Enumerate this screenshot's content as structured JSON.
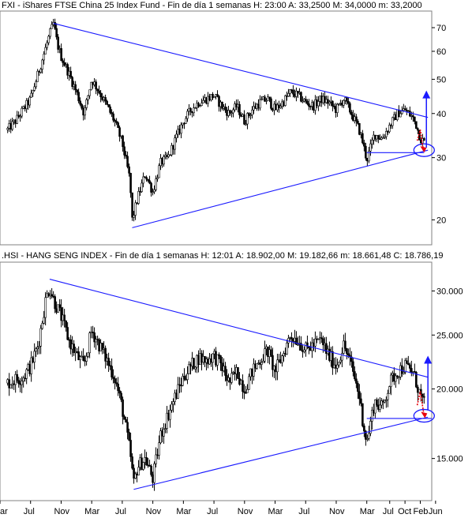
{
  "chart_data": [
    {
      "type": "candlestick",
      "title": "FXI - iShares FTSE China 25 Index Fund - Fin de día 1 semanas  H: 23:00  A: 33,2500  M: 34,0000  m: 33,2000",
      "scale": "log",
      "ylim": [
        17,
        78
      ],
      "y_ticks": [
        {
          "value": 70,
          "label": "70"
        },
        {
          "value": 60,
          "label": "60"
        },
        {
          "value": 50,
          "label": "50"
        },
        {
          "value": 40,
          "label": "40"
        },
        {
          "value": 30,
          "label": "30"
        },
        {
          "value": 20,
          "label": "20"
        }
      ],
      "series": [
        {
          "values": [
            {
              "t": 0,
              "v": 36
            },
            {
              "t": 1,
              "v": 38
            },
            {
              "t": 3,
              "v": 44
            },
            {
              "t": 4,
              "v": 52
            },
            {
              "t": 5.5,
              "v": 67
            },
            {
              "t": 6,
              "v": 72
            },
            {
              "t": 6.5,
              "v": 63
            },
            {
              "t": 7,
              "v": 58
            },
            {
              "t": 8,
              "v": 52
            },
            {
              "t": 9,
              "v": 46
            },
            {
              "t": 10,
              "v": 40
            },
            {
              "t": 11,
              "v": 50
            },
            {
              "t": 12,
              "v": 46
            },
            {
              "t": 13,
              "v": 42
            },
            {
              "t": 14,
              "v": 38
            },
            {
              "t": 15,
              "v": 33
            },
            {
              "t": 16,
              "v": 26
            },
            {
              "t": 16.3,
              "v": 20
            },
            {
              "t": 17,
              "v": 23
            },
            {
              "t": 18,
              "v": 27
            },
            {
              "t": 19,
              "v": 24
            },
            {
              "t": 20,
              "v": 29
            },
            {
              "t": 21,
              "v": 30
            },
            {
              "t": 22,
              "v": 34
            },
            {
              "t": 23,
              "v": 38
            },
            {
              "t": 24,
              "v": 41
            },
            {
              "t": 25,
              "v": 43
            },
            {
              "t": 26,
              "v": 44
            },
            {
              "t": 27,
              "v": 45
            },
            {
              "t": 28,
              "v": 42
            },
            {
              "t": 29,
              "v": 40
            },
            {
              "t": 30,
              "v": 42
            },
            {
              "t": 31,
              "v": 38
            },
            {
              "t": 32,
              "v": 41
            },
            {
              "t": 33,
              "v": 43
            },
            {
              "t": 34,
              "v": 44
            },
            {
              "t": 35,
              "v": 41
            },
            {
              "t": 36,
              "v": 43
            },
            {
              "t": 37,
              "v": 46
            },
            {
              "t": 38,
              "v": 45
            },
            {
              "t": 39,
              "v": 43
            },
            {
              "t": 40,
              "v": 42
            },
            {
              "t": 41,
              "v": 44
            },
            {
              "t": 42,
              "v": 43
            },
            {
              "t": 43,
              "v": 41
            },
            {
              "t": 44,
              "v": 44
            },
            {
              "t": 45,
              "v": 40
            },
            {
              "t": 46,
              "v": 36
            },
            {
              "t": 46.5,
              "v": 33
            },
            {
              "t": 47,
              "v": 29.5
            },
            {
              "t": 48,
              "v": 35
            },
            {
              "t": 49,
              "v": 34
            },
            {
              "t": 50,
              "v": 37
            },
            {
              "t": 51,
              "v": 40
            },
            {
              "t": 52,
              "v": 41
            },
            {
              "t": 53,
              "v": 39
            },
            {
              "t": 53.5,
              "v": 37
            },
            {
              "t": 54,
              "v": 34
            },
            {
              "t": 54.5,
              "v": 33.2
            }
          ]
        }
      ]
    },
    {
      "type": "candlestick",
      "title": ".HSI - HANG SENG INDEX - Fin de día 1 semanas  H: 12:01  A: 18.902,00  M: 19.182,66  m: 18.661,48  C: 18.786,19",
      "scale": "log",
      "ylim": [
        12600,
        33800
      ],
      "y_ticks": [
        {
          "value": 30000,
          "label": "30.000"
        },
        {
          "value": 25000,
          "label": "25.000"
        },
        {
          "value": 20000,
          "label": "20.000"
        },
        {
          "value": 15000,
          "label": "15.000"
        }
      ],
      "series": [
        {
          "values": [
            {
              "t": 0,
              "v": 20500
            },
            {
              "t": 1,
              "v": 20800
            },
            {
              "t": 2,
              "v": 21000
            },
            {
              "t": 3,
              "v": 22000
            },
            {
              "t": 4,
              "v": 24000
            },
            {
              "t": 5,
              "v": 29000
            },
            {
              "t": 5.5,
              "v": 30500
            },
            {
              "t": 6,
              "v": 29000
            },
            {
              "t": 7,
              "v": 27000
            },
            {
              "t": 8,
              "v": 24500
            },
            {
              "t": 9,
              "v": 23000
            },
            {
              "t": 10,
              "v": 22000
            },
            {
              "t": 11,
              "v": 25500
            },
            {
              "t": 12,
              "v": 24000
            },
            {
              "t": 13,
              "v": 22500
            },
            {
              "t": 14,
              "v": 21000
            },
            {
              "t": 15,
              "v": 18500
            },
            {
              "t": 16,
              "v": 15500
            },
            {
              "t": 16.5,
              "v": 13500
            },
            {
              "t": 17,
              "v": 14500
            },
            {
              "t": 18,
              "v": 15000
            },
            {
              "t": 19,
              "v": 13800
            },
            {
              "t": 20,
              "v": 16500
            },
            {
              "t": 21,
              "v": 18000
            },
            {
              "t": 22,
              "v": 19500
            },
            {
              "t": 23,
              "v": 21000
            },
            {
              "t": 24,
              "v": 22000
            },
            {
              "t": 25,
              "v": 22800
            },
            {
              "t": 26,
              "v": 22500
            },
            {
              "t": 27,
              "v": 23000
            },
            {
              "t": 28,
              "v": 22000
            },
            {
              "t": 29,
              "v": 20500
            },
            {
              "t": 30,
              "v": 21500
            },
            {
              "t": 31,
              "v": 20000
            },
            {
              "t": 32,
              "v": 21500
            },
            {
              "t": 33,
              "v": 22500
            },
            {
              "t": 34,
              "v": 23500
            },
            {
              "t": 35,
              "v": 21500
            },
            {
              "t": 36,
              "v": 23000
            },
            {
              "t": 37,
              "v": 25000
            },
            {
              "t": 38,
              "v": 24500
            },
            {
              "t": 39,
              "v": 23500
            },
            {
              "t": 40,
              "v": 24000
            },
            {
              "t": 41,
              "v": 24500
            },
            {
              "t": 42,
              "v": 23000
            },
            {
              "t": 43,
              "v": 22000
            },
            {
              "t": 44,
              "v": 24000
            },
            {
              "t": 45,
              "v": 22000
            },
            {
              "t": 46,
              "v": 19500
            },
            {
              "t": 46.5,
              "v": 17500
            },
            {
              "t": 47,
              "v": 16000
            },
            {
              "t": 48,
              "v": 19000
            },
            {
              "t": 49,
              "v": 18500
            },
            {
              "t": 50,
              "v": 20500
            },
            {
              "t": 51,
              "v": 21500
            },
            {
              "t": 52,
              "v": 22000
            },
            {
              "t": 53,
              "v": 21500
            },
            {
              "t": 53.5,
              "v": 20500
            },
            {
              "t": 54,
              "v": 19500
            },
            {
              "t": 54.5,
              "v": 18786
            }
          ]
        }
      ]
    }
  ],
  "x_axis": {
    "t_range": [
      -1,
      55.5
    ],
    "ticks": [
      {
        "t": -1,
        "label": "ar"
      },
      {
        "t": 3,
        "label": "Jul"
      },
      {
        "t": 7,
        "label": "Nov"
      },
      {
        "t": 11,
        "label": "Mar"
      },
      {
        "t": 15,
        "label": "Jul"
      },
      {
        "t": 19,
        "label": "Nov"
      },
      {
        "t": 23,
        "label": "Mar"
      },
      {
        "t": 27,
        "label": "Jul"
      },
      {
        "t": 31,
        "label": "Nov"
      },
      {
        "t": 35,
        "label": "Mar"
      },
      {
        "t": 39,
        "label": "Jul"
      },
      {
        "t": 43,
        "label": "Nov"
      },
      {
        "t": 47,
        "label": "Mar"
      },
      {
        "t": 50,
        "label": "Jul"
      },
      {
        "t": 52,
        "label": "Oct"
      },
      {
        "t": 54,
        "label": "Feb"
      },
      {
        "t": 56,
        "label": "Jun"
      }
    ]
  },
  "annotations": {
    "trendline_color": "#1a1aff",
    "arrow_color": "#e8000b",
    "fxi": {
      "upper_line": [
        {
          "t": 6,
          "v": 72
        },
        {
          "t": 55,
          "v": 39
        }
      ],
      "lower_line": [
        {
          "t": 16.3,
          "v": 19
        },
        {
          "t": 55,
          "v": 31.5
        }
      ],
      "support": [
        {
          "t": 47,
          "v": 31
        },
        {
          "t": 54.5,
          "v": 31
        }
      ],
      "blue_arrow": [
        {
          "t": 54.8,
          "v": 32
        },
        {
          "t": 54.8,
          "v": 46
        }
      ],
      "ellipse_center": {
        "t": 54.5,
        "v": 31.5
      },
      "red_arrow": [
        {
          "t": 53.6,
          "v": 33.5
        },
        {
          "t": 54,
          "v": 36
        },
        {
          "t": 54.4,
          "v": 31.5
        }
      ]
    },
    "hsi": {
      "upper_line": [
        {
          "t": 5.5,
          "v": 31500
        },
        {
          "t": 55,
          "v": 21000
        }
      ],
      "lower_line": [
        {
          "t": 16.5,
          "v": 13200
        },
        {
          "t": 55,
          "v": 17800
        }
      ],
      "support": [
        {
          "t": 47,
          "v": 17700
        },
        {
          "t": 55.5,
          "v": 17700
        }
      ],
      "blue_arrow": [
        {
          "t": 55,
          "v": 18300
        },
        {
          "t": 55,
          "v": 22800
        }
      ],
      "ellipse_center": {
        "t": 54.5,
        "v": 17900
      },
      "red_arrow": [
        {
          "t": 53.6,
          "v": 18700
        },
        {
          "t": 54,
          "v": 19800
        },
        {
          "t": 54.5,
          "v": 17900
        }
      ]
    }
  }
}
